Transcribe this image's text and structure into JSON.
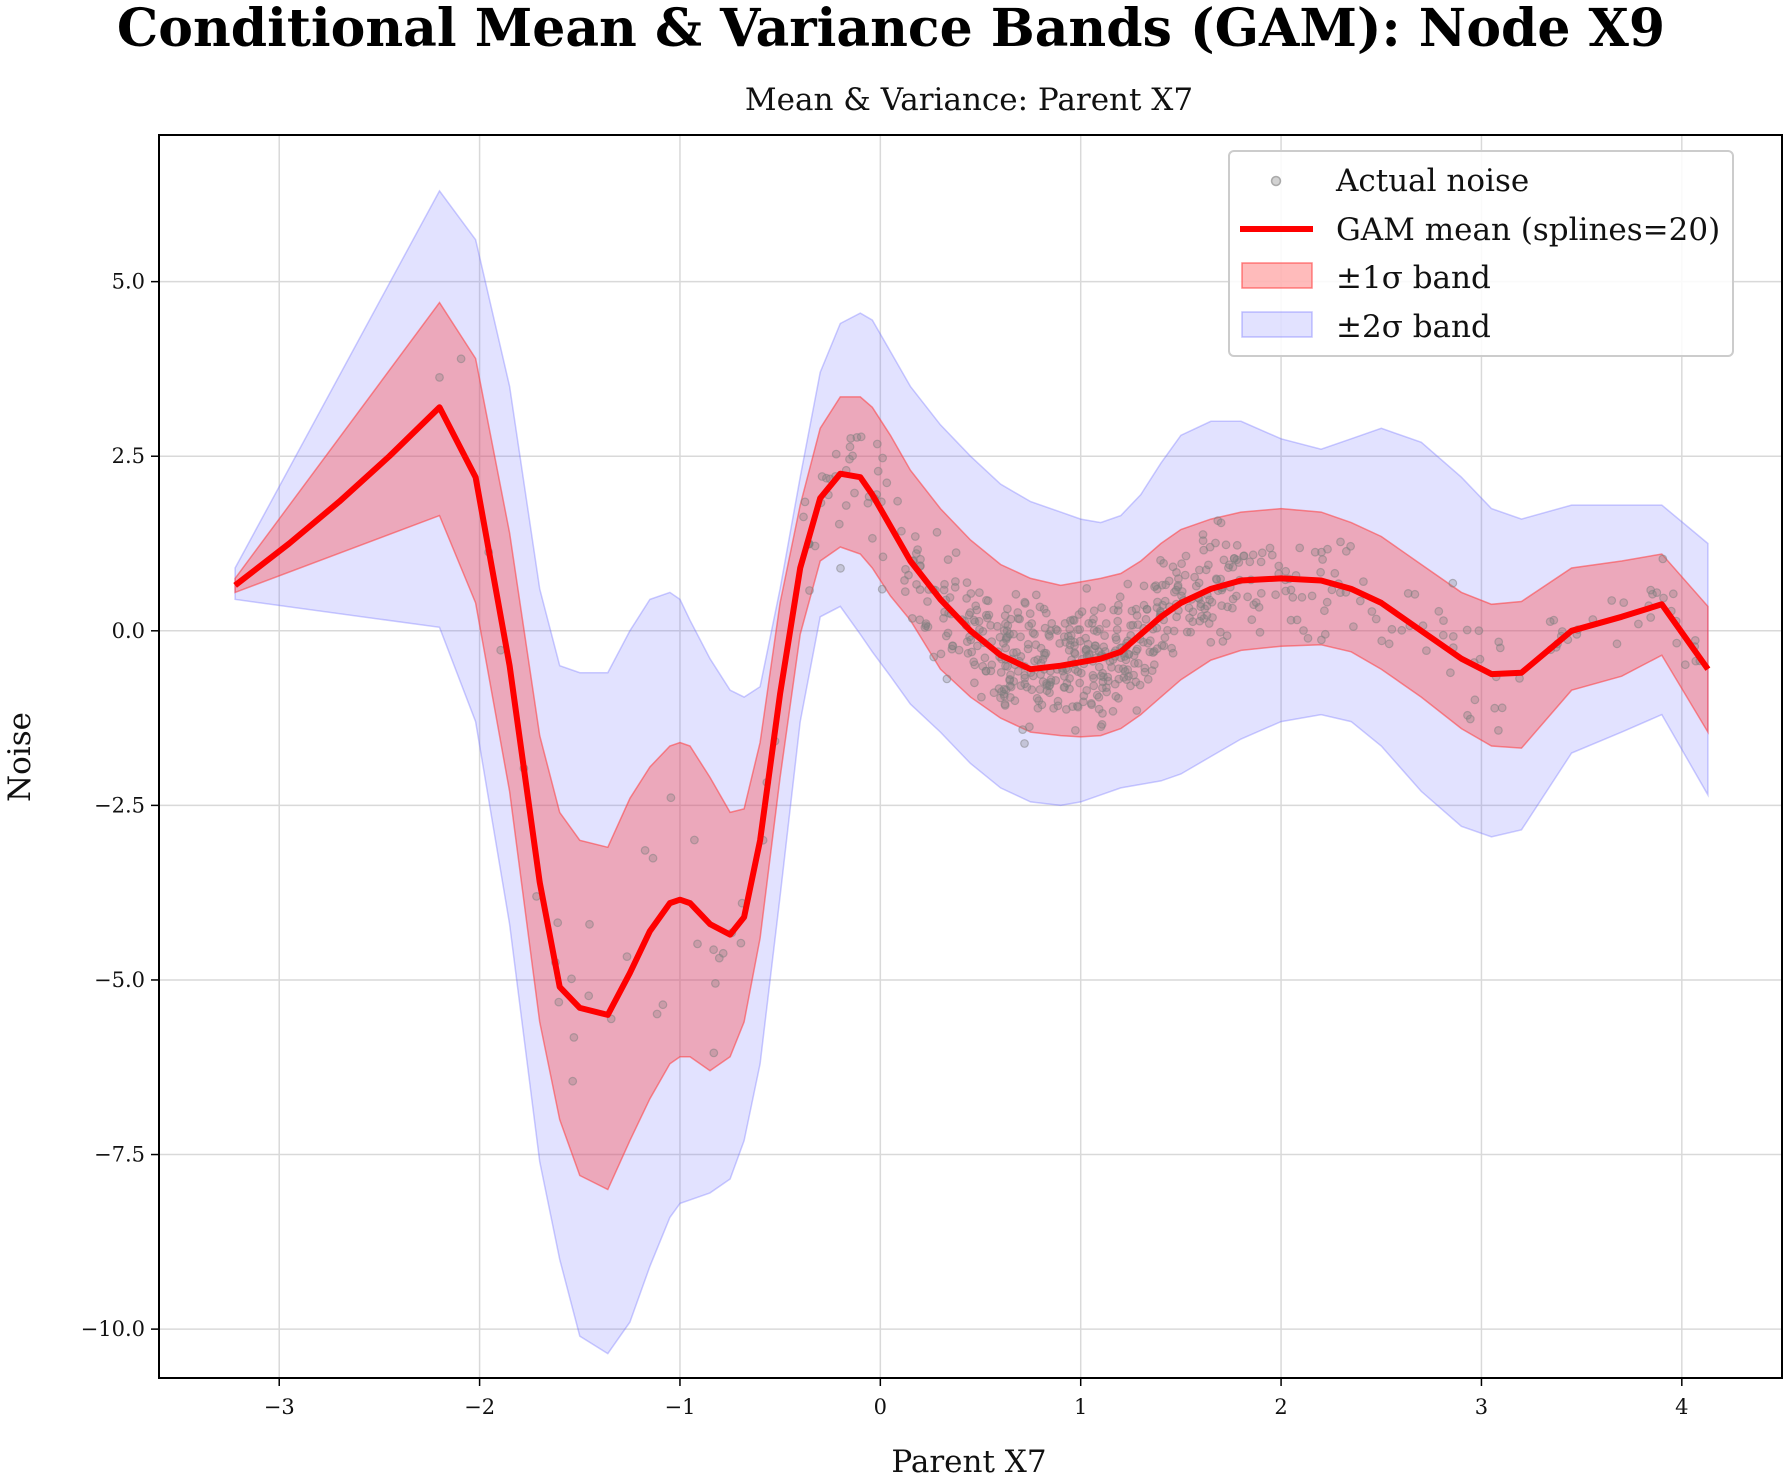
{
  "chart_data": {
    "type": "line",
    "title": "Conditional Mean & Variance Bands (GAM): Node X9",
    "subtitle": "Mean & Variance: Parent X7",
    "xlabel": "Parent X7",
    "ylabel": "Noise",
    "xlim": [
      -3.6,
      4.5
    ],
    "ylim": [
      -10.7,
      7.1
    ],
    "xticks": [
      -3,
      -2,
      -1,
      0,
      1,
      2,
      3,
      4
    ],
    "xtick_labels": [
      "−3",
      "−2",
      "−1",
      "0",
      "1",
      "2",
      "3",
      "4"
    ],
    "yticks": [
      5.0,
      2.5,
      0.0,
      -2.5,
      -5.0,
      -7.5,
      -10.0
    ],
    "ytick_labels": [
      "5.0",
      "2.5",
      "0.0",
      "−2.5",
      "−5.0",
      "−7.5",
      "−10.0"
    ],
    "grid": true,
    "legend_position": "top-right",
    "colors": {
      "mean": "#ff0000",
      "band1": "#ff3b3b",
      "band2": "#6e6eff",
      "points": "#7f7f7f"
    },
    "legend": [
      {
        "label": "Actual noise",
        "kind": "points"
      },
      {
        "label": "GAM mean (splines=20)",
        "kind": "mean"
      },
      {
        "label": "±1σ band",
        "kind": "band1"
      },
      {
        "label": "±2σ band",
        "kind": "band2"
      }
    ],
    "series": [
      {
        "name": "GAM mean (splines=20)",
        "x": [
          -3.22,
          -2.95,
          -2.7,
          -2.45,
          -2.2,
          -2.02,
          -1.85,
          -1.7,
          -1.6,
          -1.5,
          -1.36,
          -1.25,
          -1.15,
          -1.05,
          -1.0,
          -0.95,
          -0.85,
          -0.75,
          -0.68,
          -0.6,
          -0.5,
          -0.4,
          -0.3,
          -0.2,
          -0.1,
          -0.04,
          0.05,
          0.15,
          0.3,
          0.45,
          0.6,
          0.75,
          0.9,
          1.0,
          1.1,
          1.2,
          1.3,
          1.4,
          1.5,
          1.65,
          1.8,
          2.0,
          2.2,
          2.35,
          2.5,
          2.7,
          2.9,
          3.05,
          3.2,
          3.45,
          3.7,
          3.9,
          4.13
        ],
        "y": [
          0.65,
          1.25,
          1.85,
          2.5,
          3.2,
          2.2,
          -0.5,
          -3.6,
          -5.1,
          -5.4,
          -5.5,
          -4.9,
          -4.3,
          -3.9,
          -3.85,
          -3.9,
          -4.2,
          -4.35,
          -4.1,
          -3.0,
          -0.9,
          0.9,
          1.9,
          2.25,
          2.2,
          1.95,
          1.5,
          1.0,
          0.45,
          0.0,
          -0.35,
          -0.55,
          -0.5,
          -0.45,
          -0.4,
          -0.3,
          -0.05,
          0.2,
          0.4,
          0.6,
          0.72,
          0.75,
          0.72,
          0.6,
          0.4,
          0.0,
          -0.4,
          -0.62,
          -0.6,
          0.0,
          0.2,
          0.38,
          -0.55
        ]
      },
      {
        "name": "±1σ band",
        "x": [
          -3.22,
          -2.2,
          -2.02,
          -1.85,
          -1.7,
          -1.6,
          -1.5,
          -1.36,
          -1.25,
          -1.15,
          -1.05,
          -1.0,
          -0.95,
          -0.85,
          -0.75,
          -0.68,
          -0.6,
          -0.5,
          -0.4,
          -0.3,
          -0.2,
          -0.1,
          -0.04,
          0.05,
          0.15,
          0.3,
          0.45,
          0.6,
          0.75,
          0.9,
          1.0,
          1.1,
          1.2,
          1.3,
          1.4,
          1.5,
          1.65,
          1.8,
          2.0,
          2.2,
          2.35,
          2.5,
          2.7,
          2.9,
          3.05,
          3.2,
          3.45,
          3.7,
          3.9,
          4.13
        ],
        "upper": [
          0.75,
          4.7,
          3.9,
          1.4,
          -1.5,
          -2.6,
          -3.0,
          -3.1,
          -2.4,
          -1.95,
          -1.65,
          -1.6,
          -1.65,
          -2.1,
          -2.6,
          -2.55,
          -1.6,
          0.4,
          1.8,
          2.9,
          3.35,
          3.35,
          3.2,
          2.8,
          2.3,
          1.75,
          1.3,
          0.95,
          0.75,
          0.65,
          0.7,
          0.75,
          0.82,
          1.0,
          1.25,
          1.45,
          1.6,
          1.7,
          1.75,
          1.7,
          1.55,
          1.35,
          0.95,
          0.55,
          0.38,
          0.42,
          0.9,
          1.0,
          1.1,
          0.35
        ],
        "lower": [
          0.55,
          1.65,
          0.4,
          -2.3,
          -5.6,
          -7.0,
          -7.8,
          -8.0,
          -7.3,
          -6.7,
          -6.2,
          -6.1,
          -6.1,
          -6.3,
          -6.1,
          -5.6,
          -4.4,
          -2.1,
          -0.05,
          1.0,
          1.2,
          1.1,
          0.9,
          0.5,
          0.15,
          -0.55,
          -0.95,
          -1.25,
          -1.45,
          -1.5,
          -1.52,
          -1.5,
          -1.4,
          -1.2,
          -0.95,
          -0.7,
          -0.42,
          -0.28,
          -0.22,
          -0.2,
          -0.3,
          -0.55,
          -0.95,
          -1.4,
          -1.65,
          -1.68,
          -0.85,
          -0.65,
          -0.35,
          -1.45
        ]
      },
      {
        "name": "±2σ band",
        "x": [
          -3.22,
          -2.2,
          -2.02,
          -1.85,
          -1.7,
          -1.6,
          -1.5,
          -1.36,
          -1.25,
          -1.15,
          -1.05,
          -1.0,
          -0.95,
          -0.85,
          -0.75,
          -0.68,
          -0.6,
          -0.5,
          -0.4,
          -0.3,
          -0.2,
          -0.1,
          -0.04,
          0.05,
          0.15,
          0.3,
          0.45,
          0.6,
          0.75,
          0.9,
          1.0,
          1.1,
          1.2,
          1.3,
          1.4,
          1.5,
          1.65,
          1.8,
          2.0,
          2.2,
          2.35,
          2.5,
          2.7,
          2.9,
          3.05,
          3.2,
          3.45,
          3.7,
          3.9,
          4.13
        ],
        "upper": [
          0.9,
          6.3,
          5.6,
          3.5,
          0.6,
          -0.5,
          -0.6,
          -0.6,
          0.0,
          0.45,
          0.55,
          0.45,
          0.15,
          -0.4,
          -0.85,
          -0.95,
          -0.8,
          0.6,
          2.2,
          3.7,
          4.4,
          4.55,
          4.45,
          4.0,
          3.5,
          2.95,
          2.5,
          2.1,
          1.85,
          1.7,
          1.6,
          1.55,
          1.65,
          1.95,
          2.4,
          2.8,
          3.0,
          3.0,
          2.75,
          2.6,
          2.75,
          2.9,
          2.7,
          2.2,
          1.75,
          1.6,
          1.8,
          1.8,
          1.8,
          1.25
        ],
        "lower": [
          0.45,
          0.05,
          -1.3,
          -4.2,
          -7.6,
          -9.0,
          -10.1,
          -10.35,
          -9.9,
          -9.1,
          -8.4,
          -8.2,
          -8.15,
          -8.05,
          -7.85,
          -7.3,
          -6.2,
          -3.8,
          -1.3,
          0.2,
          0.35,
          -0.05,
          -0.3,
          -0.65,
          -1.05,
          -1.45,
          -1.9,
          -2.25,
          -2.45,
          -2.5,
          -2.45,
          -2.35,
          -2.25,
          -2.2,
          -2.15,
          -2.05,
          -1.8,
          -1.55,
          -1.3,
          -1.2,
          -1.3,
          -1.65,
          -2.3,
          -2.8,
          -2.95,
          -2.85,
          -1.75,
          -1.45,
          -1.2,
          -2.35
        ]
      }
    ]
  }
}
